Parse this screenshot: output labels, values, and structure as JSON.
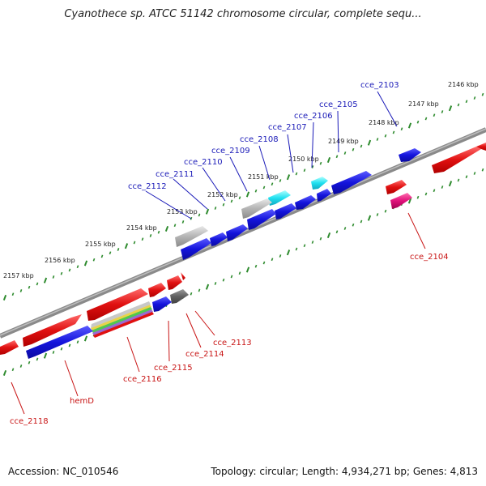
{
  "title": "Cyanothece sp. ATCC 51142 chromosome circular, complete sequ...",
  "footer": {
    "accession": "Accession: NC_010546",
    "summary": "Topology: circular; Length: 4,934,271 bp; Genes: 4,813"
  },
  "colors": {
    "backbone": "#7a7a7a",
    "ticks": "#2e8b2e",
    "blue": "#1414dc",
    "red": "#e01010",
    "gray": "#a0a0a0",
    "darkgray": "#606060",
    "cyan": "#20e0f0",
    "magenta": "#e0107a"
  },
  "scale_labels": [
    "2146 kbp",
    "2147 kbp",
    "2148 kbp",
    "2149 kbp",
    "2150 kbp",
    "2151 kbp",
    "2152 kbp",
    "2153 kbp",
    "2154 kbp",
    "2155 kbp",
    "2156 kbp",
    "2157 kbp"
  ],
  "gene_labels": {
    "top": [
      "cce_2103",
      "cce_2105",
      "cce_2106",
      "cce_2107",
      "cce_2108",
      "cce_2109",
      "cce_2110",
      "cce_2111",
      "cce_2112"
    ],
    "bottom": [
      "cce_2104",
      "cce_2113",
      "cce_2114",
      "cce_2115",
      "cce_2116",
      "hemD",
      "cce_2118"
    ]
  }
}
